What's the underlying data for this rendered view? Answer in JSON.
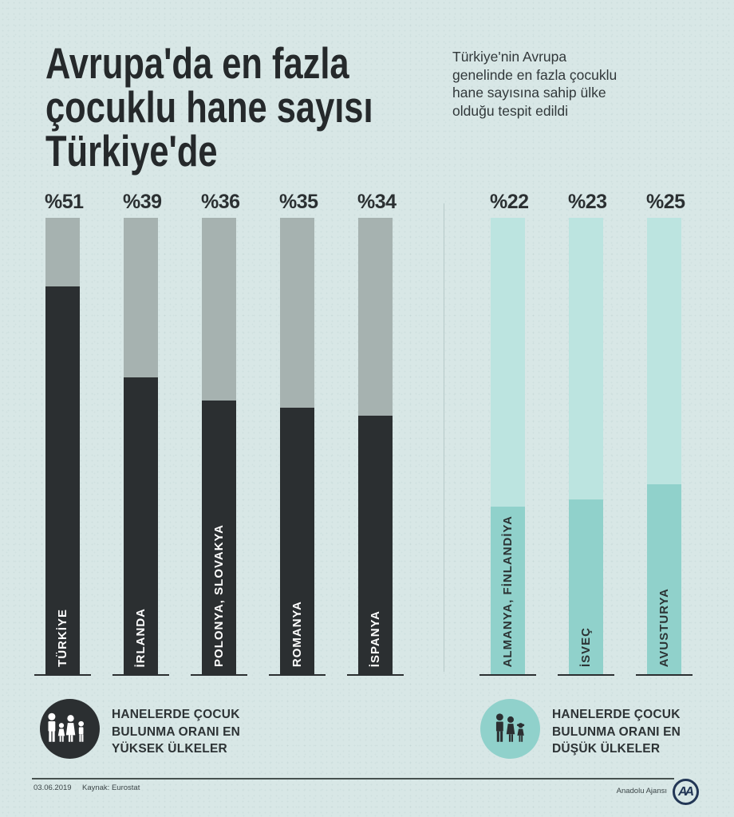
{
  "header": {
    "title": "Avrupa'da en fazla\nçocuklu hane sayısı\nTürkiye'de",
    "subtitle": "Türkiye'nin Avrupa\ngenelinde en fazla çocuklu\nhane sayısına sahip ülke\nolduğu tespit edildi"
  },
  "chart_data": [
    {
      "type": "bar",
      "group": "highest-countries",
      "categories": [
        "TÜRKİYE",
        "İRLANDA",
        "POLONYA, SLOVAKYA",
        "ROMANYA",
        "İSPANYA"
      ],
      "values": [
        51,
        39,
        36,
        35,
        34
      ],
      "value_prefix": "%",
      "value_labels": [
        "%51",
        "%39",
        "%36",
        "%35",
        "%34"
      ],
      "ylim": [
        0,
        60
      ],
      "track_color": "#a6b2b0",
      "fill_color": "#2b2f31",
      "label_color": "#ffffff",
      "value_label_color": "#2b3032",
      "baseline_color": "#2b2f31"
    },
    {
      "type": "bar",
      "group": "lowest-countries",
      "categories": [
        "ALMANYA, FİNLANDİYA",
        "İSVEÇ",
        "AVUSTURYA"
      ],
      "values": [
        22,
        23,
        25
      ],
      "value_prefix": "%",
      "value_labels": [
        "%22",
        "%23",
        "%25"
      ],
      "ylim": [
        0,
        60
      ],
      "track_color": "#bce4e0",
      "fill_color": "#90d1cb",
      "label_color": "#2c3334",
      "value_label_color": "#2b3032",
      "baseline_color": "#2b2f31"
    }
  ],
  "legends": {
    "highest": {
      "icon": "family-icon-dark",
      "text": "HANELERDE ÇOCUK\nBULUNMA ORANI EN\nYÜKSEK ÜLKELER",
      "circle_color": "#2b2f31",
      "icon_color": "#ffffff"
    },
    "lowest": {
      "icon": "family-icon-teal",
      "text": "HANELERDE ÇOCUK\nBULUNMA ORANI EN\nDÜŞÜK ÜLKELER",
      "circle_color": "#90d1cb",
      "icon_color": "#2b2f31"
    }
  },
  "footer": {
    "date": "03.06.2019",
    "source": "Kaynak: Eurostat",
    "agency": "Anadolu Ajansı",
    "logo": "AA"
  },
  "colors": {
    "background": "#d8e7e6",
    "title": "#25292b",
    "subtitle": "#31383a",
    "divider": "#b7cac9",
    "footer_rule": "#46514f",
    "logo": "#223655"
  }
}
